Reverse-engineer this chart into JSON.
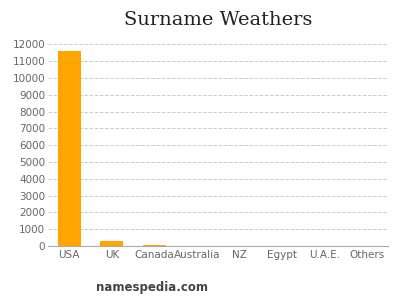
{
  "title": "Surname Weathers",
  "categories": [
    "USA",
    "UK",
    "Canada",
    "Australia",
    "NZ",
    "Egypt",
    "U.A.E.",
    "Others"
  ],
  "values": [
    11600,
    270,
    30,
    20,
    5,
    5,
    5,
    5
  ],
  "bar_color": "#FFA500",
  "background_color": "#ffffff",
  "ylim": [
    0,
    12500
  ],
  "yticks": [
    0,
    1000,
    2000,
    3000,
    4000,
    5000,
    6000,
    7000,
    8000,
    9000,
    10000,
    11000,
    12000
  ],
  "grid_color": "#cccccc",
  "footer": "namespedia.com",
  "title_fontsize": 14,
  "tick_fontsize": 7.5,
  "footer_fontsize": 8.5
}
